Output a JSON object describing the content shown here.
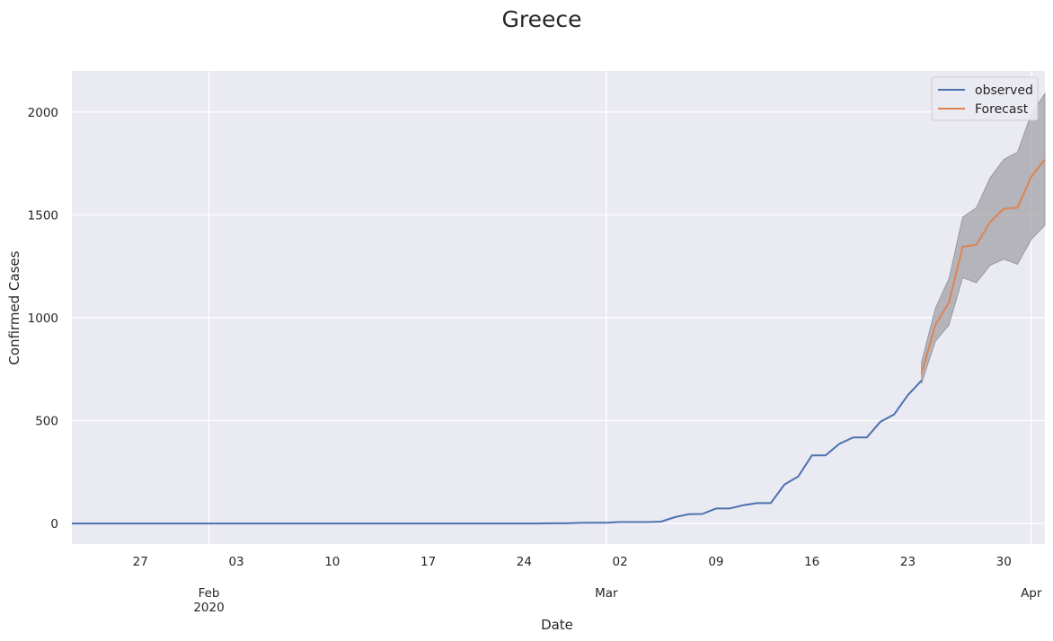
{
  "chart_data": {
    "type": "line",
    "title": "Greece",
    "xlabel": "Date",
    "ylabel": "Confirmed Cases",
    "xlim": [
      "2020-01-22",
      "2020-04-02"
    ],
    "ylim": [
      -100,
      2200
    ],
    "grid": true,
    "legend_position": "top-right",
    "y_ticks": [
      0,
      500,
      1000,
      1500,
      2000
    ],
    "x_ticks_minor": [
      {
        "date": "2020-01-27",
        "label": "27"
      },
      {
        "date": "2020-02-03",
        "label": "03"
      },
      {
        "date": "2020-02-10",
        "label": "10"
      },
      {
        "date": "2020-02-17",
        "label": "17"
      },
      {
        "date": "2020-02-24",
        "label": "24"
      },
      {
        "date": "2020-03-02",
        "label": "02"
      },
      {
        "date": "2020-03-09",
        "label": "09"
      },
      {
        "date": "2020-03-16",
        "label": "16"
      },
      {
        "date": "2020-03-23",
        "label": "23"
      },
      {
        "date": "2020-03-30",
        "label": "30"
      }
    ],
    "x_ticks_major": [
      {
        "date": "2020-02-01",
        "label": "Feb",
        "sublabel": "2020"
      },
      {
        "date": "2020-03-01",
        "label": "Mar",
        "sublabel": ""
      },
      {
        "date": "2020-04-01",
        "label": "Apr",
        "sublabel": ""
      }
    ],
    "series": [
      {
        "name": "observed",
        "color": "#4c72b0",
        "start_date": "2020-01-22",
        "values": [
          0,
          0,
          0,
          0,
          0,
          0,
          0,
          0,
          0,
          0,
          0,
          0,
          0,
          0,
          0,
          0,
          0,
          0,
          0,
          0,
          0,
          0,
          0,
          0,
          0,
          0,
          0,
          0,
          0,
          0,
          0,
          0,
          0,
          0,
          0,
          1,
          1,
          3,
          4,
          4,
          7,
          7,
          7,
          9,
          31,
          45,
          46,
          73,
          73,
          89,
          99,
          99,
          190,
          228,
          331,
          331,
          387,
          418,
          418,
          495,
          530,
          624,
          695
        ]
      },
      {
        "name": "Forecast",
        "color": "#dd8452",
        "start_date": "2020-03-24",
        "values": [
          730,
          965,
          1075,
          1345,
          1355,
          1465,
          1530,
          1535,
          1685,
          1770
        ]
      }
    ],
    "confidence_band": {
      "color": "#a0a0a4",
      "start_date": "2020-03-24",
      "upper": [
        785,
        1045,
        1190,
        1490,
        1535,
        1680,
        1770,
        1805,
        1990,
        2090
      ],
      "lower": [
        680,
        885,
        965,
        1195,
        1170,
        1255,
        1285,
        1260,
        1380,
        1450
      ]
    }
  }
}
